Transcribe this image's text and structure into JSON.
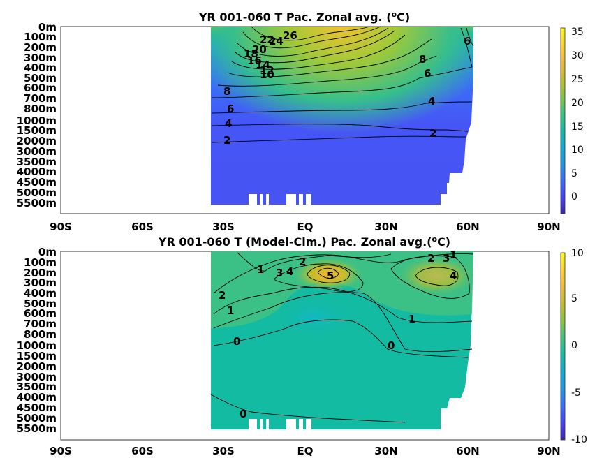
{
  "chart_data": [
    {
      "type": "heatmap",
      "title": "YR 001-060 T Pac. Zonal avg. (",
      "title_superscript": "o",
      "title_suffix": "C)",
      "x_tick_labels": [
        "90S",
        "60S",
        "30S",
        "EQ",
        "30N",
        "60N",
        "90N"
      ],
      "x_tick_values": [
        -90,
        -60,
        -30,
        0,
        30,
        60,
        90
      ],
      "y_tick_labels": [
        "0m",
        "100m",
        "200m",
        "300m",
        "400m",
        "500m",
        "600m",
        "700m",
        "800m",
        "1000m",
        "1500m",
        "2000m",
        "3000m",
        "3500m",
        "4000m",
        "4500m",
        "5000m",
        "5500m"
      ],
      "xlim": [
        -90,
        90
      ],
      "colorbar": {
        "ticks": [
          "35",
          "30",
          "25",
          "20",
          "15",
          "10",
          "5",
          "0"
        ],
        "values": [
          35,
          30,
          25,
          20,
          15,
          10,
          5,
          0
        ],
        "range": [
          -3,
          36
        ]
      },
      "contour_labels": [
        "26",
        "24",
        "22",
        "20",
        "18",
        "16",
        "14",
        "12",
        "10",
        "8",
        "6",
        "4",
        "2",
        "8",
        "6",
        "4",
        "2",
        "6"
      ]
    },
    {
      "type": "heatmap",
      "title": "YR 001-060 T (Model-Clm.) Pac. Zonal avg.(",
      "title_superscript": "o",
      "title_suffix": "C)",
      "x_tick_labels": [
        "90S",
        "60S",
        "30S",
        "EQ",
        "30N",
        "60N",
        "90N"
      ],
      "x_tick_values": [
        -90,
        -60,
        -30,
        0,
        30,
        60,
        90
      ],
      "y_tick_labels": [
        "0m",
        "100m",
        "200m",
        "300m",
        "400m",
        "500m",
        "600m",
        "700m",
        "800m",
        "1000m",
        "1500m",
        "2000m",
        "3000m",
        "3500m",
        "4000m",
        "4500m",
        "5000m",
        "5500m"
      ],
      "xlim": [
        -90,
        90
      ],
      "colorbar": {
        "ticks": [
          "10",
          "5",
          "0",
          "-5",
          "-10"
        ],
        "values": [
          10,
          5,
          0,
          -5,
          -10
        ],
        "range": [
          -10,
          10
        ]
      },
      "contour_labels": [
        "1",
        "2",
        "3",
        "4",
        "5",
        "2",
        "1",
        "0",
        "2",
        "3",
        "1",
        "4",
        "1",
        "0",
        "0"
      ]
    }
  ],
  "colors": {
    "colormap": [
      "#3e26a8",
      "#4743f5",
      "#3a6ef7",
      "#2196e1",
      "#10abd0",
      "#13bba3",
      "#43c37a",
      "#8bc43e",
      "#c4bd2a",
      "#f0ba3c",
      "#fcd52d",
      "#f9fb15"
    ]
  }
}
